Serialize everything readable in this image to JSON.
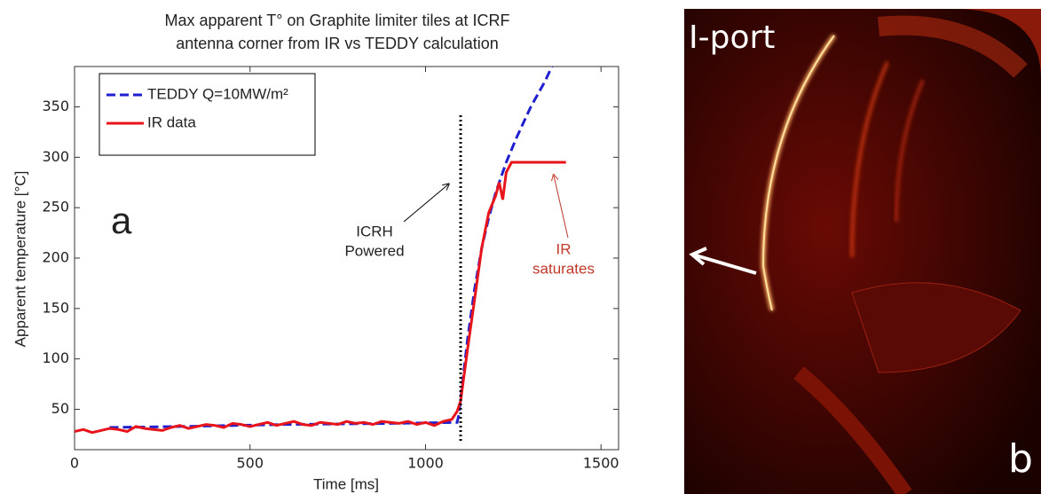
{
  "chart_data": {
    "type": "line",
    "title": [
      "Max apparent T° on Graphite limiter tiles at ICRF",
      "antenna corner from IR vs TEDDY calculation"
    ],
    "x_label": "Time [ms]",
    "y_label": "Apparent temperature [°C]",
    "panel_label": "a",
    "xlim": [
      0,
      1550
    ],
    "ylim": [
      10,
      390
    ],
    "xticks": [
      0,
      500,
      1000,
      1500
    ],
    "yticks": [
      50,
      100,
      150,
      200,
      250,
      300,
      350
    ],
    "legend": "upper left",
    "series": [
      {
        "name": "TEDDY Q=10MW/m²",
        "color": "#1f1fd0",
        "dash": true,
        "x": [
          100,
          300,
          600,
          900,
          1090,
          1095,
          1100,
          1120,
          1140,
          1160,
          1180,
          1200,
          1230,
          1260,
          1300,
          1340,
          1360
        ],
        "values": [
          32,
          33,
          35,
          36,
          37,
          45,
          60,
          120,
          170,
          210,
          240,
          265,
          295,
          320,
          350,
          375,
          390
        ]
      },
      {
        "name": "IR data",
        "color": "#e8141b",
        "dash": false,
        "x": [
          0,
          25,
          50,
          75,
          100,
          125,
          150,
          175,
          200,
          225,
          250,
          275,
          300,
          325,
          350,
          375,
          400,
          425,
          450,
          475,
          500,
          525,
          550,
          575,
          600,
          625,
          650,
          675,
          700,
          725,
          750,
          775,
          800,
          825,
          850,
          875,
          900,
          925,
          950,
          975,
          1000,
          1025,
          1050,
          1075,
          1090,
          1100,
          1120,
          1140,
          1160,
          1180,
          1200,
          1210,
          1220,
          1230,
          1245,
          1400
        ],
        "values": [
          28,
          30,
          27,
          29,
          31,
          30,
          28,
          33,
          31,
          30,
          29,
          32,
          34,
          31,
          33,
          35,
          34,
          32,
          36,
          35,
          33,
          35,
          37,
          34,
          36,
          38,
          35,
          34,
          37,
          36,
          35,
          38,
          36,
          37,
          35,
          38,
          37,
          36,
          38,
          35,
          37,
          34,
          38,
          40,
          48,
          58,
          110,
          160,
          210,
          245,
          262,
          275,
          258,
          285,
          295,
          295
        ]
      }
    ],
    "vline": 1100,
    "annotations": [
      {
        "text": [
          "ICRH",
          "Powered"
        ]
      },
      {
        "text": [
          "IR",
          "saturates"
        ]
      }
    ]
  },
  "image": {
    "top_label": "I-port",
    "corner_label": "b"
  }
}
